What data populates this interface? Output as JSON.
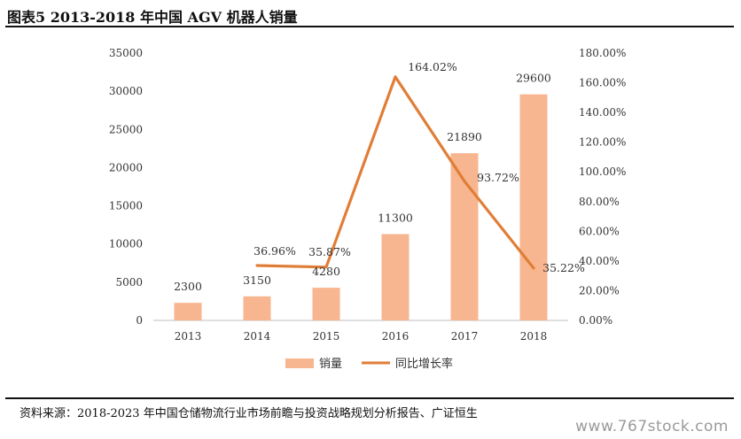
{
  "header": {
    "title": "图表5 2013-2018 年中国 AGV 机器人销量"
  },
  "footer": {
    "source": "资料来源：2018-2023 年中国仓储物流行业市场前瞻与投资战略规划分析报告、广证恒生",
    "watermark": "www.767stock.com"
  },
  "chart_data": {
    "type": "bar",
    "categories": [
      "2013",
      "2014",
      "2015",
      "2016",
      "2017",
      "2018"
    ],
    "series": [
      {
        "name": "销量",
        "type": "bar",
        "axis": "left",
        "values": [
          2300,
          3150,
          4280,
          11300,
          21890,
          29600
        ],
        "labels": [
          "2300",
          "3150",
          "4280",
          "11300",
          "21890",
          "29600"
        ],
        "color": "#F7B68F"
      },
      {
        "name": "同比增长率",
        "type": "line",
        "axis": "right",
        "values": [
          null,
          36.96,
          35.87,
          164.02,
          93.72,
          35.22
        ],
        "labels": [
          "",
          "36.96%",
          "35.87%",
          "164.02%",
          "93.72%",
          "35.22%"
        ],
        "color": "#E07E38"
      }
    ],
    "y_left": {
      "ylim": [
        0,
        35000
      ],
      "ticks": [
        "0",
        "5000",
        "10000",
        "15000",
        "20000",
        "25000",
        "30000",
        "35000"
      ]
    },
    "y_right": {
      "ylim": [
        0,
        180
      ],
      "ticks": [
        "0.00%",
        "20.00%",
        "40.00%",
        "60.00%",
        "80.00%",
        "100.00%",
        "120.00%",
        "140.00%",
        "160.00%",
        "180.00%"
      ]
    },
    "grid": false,
    "legend": "bottom-center"
  }
}
